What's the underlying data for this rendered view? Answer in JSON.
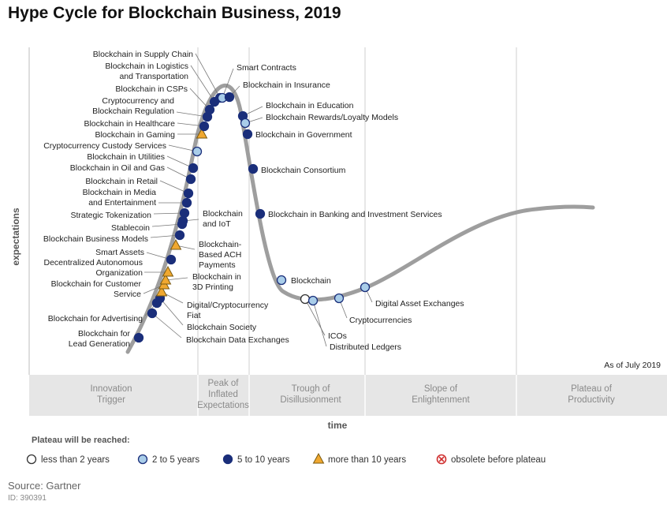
{
  "chart_data": {
    "type": "scatter",
    "title": "Hype Cycle for Blockchain Business, 2019",
    "xlabel": "time",
    "ylabel": "expectations",
    "as_of": "As of July 2019",
    "phases": [
      "Innovation Trigger",
      "Peak of Inflated Expectations",
      "Trough of Disillusionment",
      "Slope of Enlightenment",
      "Plateau of Productivity"
    ],
    "legend_title": "Plateau will be reached:",
    "legend": [
      {
        "key": "lt2",
        "label": "less than 2 years",
        "fill": "#ffffff",
        "shape": "circle"
      },
      {
        "key": "2to5",
        "label": "2 to 5 years",
        "fill": "#a9cde9",
        "shape": "circle"
      },
      {
        "key": "5to10",
        "label": "5 to 10 years",
        "fill": "#1a2e7a",
        "shape": "circle"
      },
      {
        "key": "gt10",
        "label": "more than 10 years",
        "fill": "#f0a830",
        "shape": "triangle"
      },
      {
        "key": "obsolete",
        "label": "obsolete before plateau",
        "fill": "#ffffff",
        "shape": "circle-x"
      }
    ],
    "source": "Source: Gartner",
    "source_id": "ID: 390391",
    "points": [
      {
        "name": "Blockchain for Lead Generation",
        "cat": "5to10"
      },
      {
        "name": "Blockchain Data Exchanges",
        "cat": "5to10"
      },
      {
        "name": "Blockchain for Advertising",
        "cat": "5to10"
      },
      {
        "name": "Blockchain Society",
        "cat": "5to10"
      },
      {
        "name": "Digital/Cryptocurrency Fiat",
        "cat": "gt10"
      },
      {
        "name": "Blockchain for Customer Service",
        "cat": "gt10"
      },
      {
        "name": "Blockchain in 3D Printing",
        "cat": "gt10"
      },
      {
        "name": "Decentralized Autonomous Organization",
        "cat": "gt10"
      },
      {
        "name": "Smart Assets",
        "cat": "5to10"
      },
      {
        "name": "Blockchain-Based ACH Payments",
        "cat": "gt10"
      },
      {
        "name": "Blockchain Business Models",
        "cat": "5to10"
      },
      {
        "name": "Stablecoin",
        "cat": "5to10"
      },
      {
        "name": "Blockchain and IoT",
        "cat": "5to10"
      },
      {
        "name": "Strategic Tokenization",
        "cat": "5to10"
      },
      {
        "name": "Blockchain in Media and Entertainment",
        "cat": "5to10"
      },
      {
        "name": "Blockchain in Retail",
        "cat": "5to10"
      },
      {
        "name": "Blockchain in Oil and Gas",
        "cat": "5to10"
      },
      {
        "name": "Blockchain in Utilities",
        "cat": "5to10"
      },
      {
        "name": "Cryptocurrency Custody Services",
        "cat": "2to5"
      },
      {
        "name": "Blockchain in Gaming",
        "cat": "gt10"
      },
      {
        "name": "Blockchain in Healthcare",
        "cat": "5to10"
      },
      {
        "name": "Cryptocurrency and Blockchain Regulation",
        "cat": "5to10"
      },
      {
        "name": "Blockchain in CSPs",
        "cat": "5to10"
      },
      {
        "name": "Blockchain in Logistics and Transportation",
        "cat": "5to10"
      },
      {
        "name": "Blockchain in Supply Chain",
        "cat": "5to10"
      },
      {
        "name": "Smart Contracts",
        "cat": "2to5"
      },
      {
        "name": "Blockchain in Insurance",
        "cat": "5to10"
      },
      {
        "name": "Blockchain in Education",
        "cat": "5to10"
      },
      {
        "name": "Blockchain Rewards/Loyalty Models",
        "cat": "2to5"
      },
      {
        "name": "Blockchain in Government",
        "cat": "5to10"
      },
      {
        "name": "Blockchain Consortium",
        "cat": "5to10"
      },
      {
        "name": "Blockchain in Banking and Investment Services",
        "cat": "5to10"
      },
      {
        "name": "Blockchain",
        "cat": "2to5"
      },
      {
        "name": "ICOs",
        "cat": "lt2"
      },
      {
        "name": "Distributed Ledgers",
        "cat": "2to5"
      },
      {
        "name": "Cryptocurrencies",
        "cat": "2to5"
      },
      {
        "name": "Digital Asset Exchanges",
        "cat": "2to5"
      }
    ]
  },
  "colors": {
    "curve": "#9e9e9e",
    "gridline": "#cfcfcf",
    "phase_band": "#e6e6e6",
    "marker_stroke": "#1a2e7a",
    "obsolete_x": "#d03030"
  }
}
